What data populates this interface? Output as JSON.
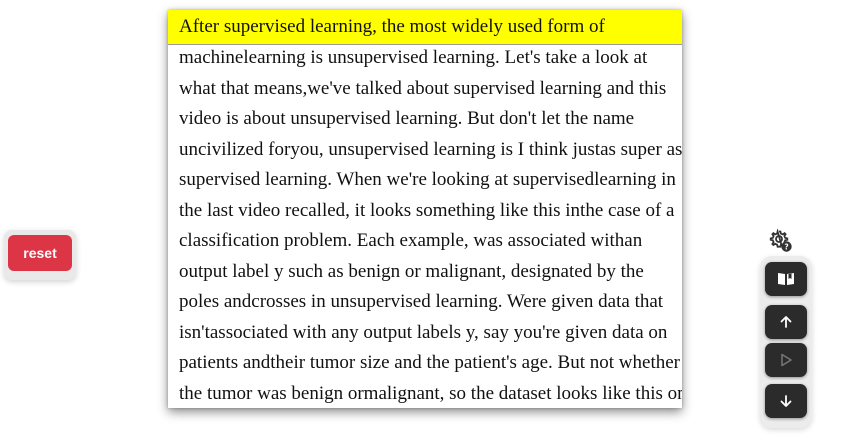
{
  "controls": {
    "reset_label": "reset"
  },
  "reader": {
    "highlighted_line": "After supervised learning, the most widely used form of",
    "lines": [
      "machinelearning is unsupervised learning. Let's take a look at",
      "what that means,we've talked about supervised learning and this",
      "video is about unsupervised learning. But don't let the name",
      "uncivilized foryou, unsupervised learning is I think justas super as",
      "supervised learning. When we're looking at supervisedlearning in",
      "the last video recalled, it looks something like this inthe case of a",
      "classification problem. Each example, was associated withan",
      "output label y such as benign or malignant, designated by the",
      "poles andcrosses in unsupervised learning. Were given data that",
      "isn'tassociated with any output labels y, say you're given data on",
      "patients andtheir tumor size and the patient's age. But not whether",
      "the tumor was benign ormalignant, so the dataset looks like this on"
    ]
  },
  "toolbar": {
    "icons": [
      "settings-help-icon",
      "book-open-icon",
      "arrow-up-icon",
      "play-icon",
      "arrow-down-icon"
    ]
  },
  "colors": {
    "highlight": "#ffff00",
    "reset_button": "#dc3545",
    "toolbar_button": "#2b2b2b",
    "play_disabled": "#777777"
  }
}
